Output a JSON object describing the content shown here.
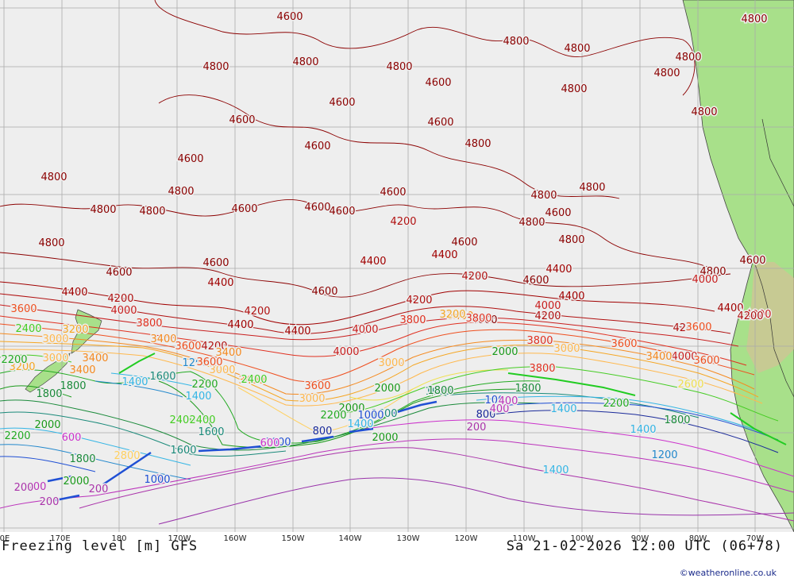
{
  "title": {
    "left": "Freezing level [m] GFS",
    "right": "Sa 21-02-2026 12:00 UTC (06+78)"
  },
  "credit": "©weatheronline.co.uk",
  "colors": {
    "ocean": "#eeeeee",
    "land": "#a8e08a",
    "grid": "#aaaaaa",
    "c4800": "#8b0000",
    "c4600": "#8b0000",
    "c4400": "#a00000",
    "c4200": "#b01010",
    "c4000": "#c81e1e",
    "c3800": "#e03020",
    "c3600": "#ef4f1f",
    "c3400": "#f58a20",
    "c3200": "#f5a623",
    "c3000": "#ffb84d",
    "c2800": "#ffd060",
    "c2600": "#f0e050",
    "c2400": "#44cc22",
    "c2200": "#22aa22",
    "c2000": "#1a9a1a",
    "c1800": "#1a8a3a",
    "c1600": "#1a8a7a",
    "c1400": "#33b5e5",
    "c1200": "#2288cc",
    "c1000": "#1f4fd4",
    "c800": "#1a2a9a",
    "c600": "#cc33cc",
    "c400": "#bb33bb",
    "c200": "#aa33aa",
    "c0": "#9933aa"
  },
  "map": {
    "longitude_labels": [
      {
        "text": "0E",
        "lon": -160
      },
      {
        "text": "170E",
        "lon": -170
      },
      {
        "text": "180",
        "lon": -180
      },
      {
        "text": "170W",
        "lon": 170
      },
      {
        "text": "160W",
        "lon": 160
      },
      {
        "text": "150W",
        "lon": 150
      },
      {
        "text": "140W",
        "lon": 140
      },
      {
        "text": "130W",
        "lon": 130
      },
      {
        "text": "120W",
        "lon": 120
      },
      {
        "text": "110W",
        "lon": 110
      },
      {
        "text": "100W",
        "lon": 100
      },
      {
        "text": "90W",
        "lon": 90
      },
      {
        "text": "80W",
        "lon": 80
      },
      {
        "text": "70W",
        "lon": 70
      }
    ],
    "contour_labels": [
      {
        "v": "4600",
        "c": "c4600"
      },
      {
        "v": "4800",
        "c": "c4800"
      },
      {
        "v": "4800",
        "c": "c4800"
      },
      {
        "v": "4800",
        "c": "c4800"
      },
      {
        "v": "4800",
        "c": "c4800"
      },
      {
        "v": "4800",
        "c": "c4800"
      },
      {
        "v": "4800",
        "c": "c4800"
      },
      {
        "v": "4800",
        "c": "c4800"
      },
      {
        "v": "4800",
        "c": "c4800"
      },
      {
        "v": "4800",
        "c": "c4800"
      },
      {
        "v": "4800",
        "c": "c4800"
      },
      {
        "v": "4800",
        "c": "c4800"
      },
      {
        "v": "4800",
        "c": "c4800"
      },
      {
        "v": "4600",
        "c": "c4600"
      },
      {
        "v": "4600",
        "c": "c4600"
      },
      {
        "v": "4600",
        "c": "c4600"
      },
      {
        "v": "4800",
        "c": "c4800"
      },
      {
        "v": "4600",
        "c": "c4600"
      },
      {
        "v": "4600",
        "c": "c4600"
      },
      {
        "v": "4800",
        "c": "c4800"
      },
      {
        "v": "4800",
        "c": "c4800"
      },
      {
        "v": "4800",
        "c": "c4800"
      },
      {
        "v": "4800",
        "c": "c4800"
      },
      {
        "v": "4600",
        "c": "c4600"
      },
      {
        "v": "4600",
        "c": "c4600"
      },
      {
        "v": "4600",
        "c": "c4600"
      },
      {
        "v": "4600",
        "c": "c4600"
      },
      {
        "v": "4800",
        "c": "c4800"
      },
      {
        "v": "4800",
        "c": "c4800"
      },
      {
        "v": "4600",
        "c": "c4600"
      },
      {
        "v": "4800",
        "c": "c4800"
      },
      {
        "v": "4600",
        "c": "c4600"
      },
      {
        "v": "4400",
        "c": "c4400"
      },
      {
        "v": "4200",
        "c": "c4200"
      },
      {
        "v": "4600",
        "c": "c4600"
      },
      {
        "v": "4400",
        "c": "c4400"
      },
      {
        "v": "4600",
        "c": "c4600"
      },
      {
        "v": "4400",
        "c": "c4400"
      },
      {
        "v": "4600",
        "c": "c4600"
      },
      {
        "v": "4600",
        "c": "c4600"
      },
      {
        "v": "4400",
        "c": "c4400"
      },
      {
        "v": "4200",
        "c": "c4200"
      },
      {
        "v": "4200",
        "c": "c4200"
      },
      {
        "v": "4600",
        "c": "c4600"
      },
      {
        "v": "4400",
        "c": "c4400"
      },
      {
        "v": "4200",
        "c": "c4200"
      },
      {
        "v": "4000",
        "c": "c4000"
      },
      {
        "v": "4400",
        "c": "c4400"
      },
      {
        "v": "4200",
        "c": "c4200"
      },
      {
        "v": "4000",
        "c": "c4000"
      },
      {
        "v": "3800",
        "c": "c3800"
      },
      {
        "v": "3600",
        "c": "c3600"
      },
      {
        "v": "4400",
        "c": "c4400"
      },
      {
        "v": "4800",
        "c": "c4800"
      },
      {
        "v": "4600",
        "c": "c4600"
      },
      {
        "v": "4000",
        "c": "c4000"
      },
      {
        "v": "4400",
        "c": "c4400"
      },
      {
        "v": "4200",
        "c": "c4200"
      },
      {
        "v": "4000",
        "c": "c4000"
      },
      {
        "v": "4600",
        "c": "c4600"
      },
      {
        "v": "4200",
        "c": "c4200"
      },
      {
        "v": "4000",
        "c": "c4000"
      },
      {
        "v": "4400",
        "c": "c4400"
      },
      {
        "v": "4000",
        "c": "c4000"
      },
      {
        "v": "3800",
        "c": "c3800"
      },
      {
        "v": "4200",
        "c": "c4200"
      },
      {
        "v": "3800",
        "c": "c3800"
      },
      {
        "v": "4000",
        "c": "c4000"
      },
      {
        "v": "3600",
        "c": "c3600"
      },
      {
        "v": "3600",
        "c": "c3600"
      },
      {
        "v": "3400",
        "c": "c3400"
      },
      {
        "v": "3200",
        "c": "c3200"
      },
      {
        "v": "3400",
        "c": "c3400"
      },
      {
        "v": "3000",
        "c": "c3000"
      },
      {
        "v": "3400",
        "c": "c3400"
      },
      {
        "v": "3600",
        "c": "c3600"
      },
      {
        "v": "4200",
        "c": "c4200"
      },
      {
        "v": "3600",
        "c": "c3600"
      },
      {
        "v": "3800",
        "c": "c3800"
      },
      {
        "v": "3400",
        "c": "c3400"
      },
      {
        "v": "3600",
        "c": "c3600"
      },
      {
        "v": "3400",
        "c": "c3400"
      },
      {
        "v": "3200",
        "c": "c3200"
      },
      {
        "v": "3000",
        "c": "c3000"
      },
      {
        "v": "2400",
        "c": "c2400"
      },
      {
        "v": "2000",
        "c": "c2000"
      },
      {
        "v": "3800",
        "c": "c3800"
      },
      {
        "v": "3200",
        "c": "c3200"
      },
      {
        "v": "3400",
        "c": "c3400"
      },
      {
        "v": "3000",
        "c": "c3000"
      },
      {
        "v": "2400",
        "c": "c2400"
      },
      {
        "v": "3000",
        "c": "c3000"
      },
      {
        "v": "2200",
        "c": "c2200"
      },
      {
        "v": "3000",
        "c": "c3000"
      },
      {
        "v": "1800",
        "c": "c1800"
      },
      {
        "v": "1200",
        "c": "c1200"
      },
      {
        "v": "1400",
        "c": "c1400"
      },
      {
        "v": "1600",
        "c": "c1600"
      },
      {
        "v": "2200",
        "c": "c2200"
      },
      {
        "v": "3000",
        "c": "c3000"
      },
      {
        "v": "3600",
        "c": "c3600"
      },
      {
        "v": "3400",
        "c": "c3400"
      },
      {
        "v": "2600",
        "c": "c2600"
      },
      {
        "v": "2000",
        "c": "c2000"
      },
      {
        "v": "1600",
        "c": "c1600"
      },
      {
        "v": "1800",
        "c": "c1800"
      },
      {
        "v": "1400",
        "c": "c1400"
      },
      {
        "v": "2400",
        "c": "c2400"
      },
      {
        "v": "2000",
        "c": "c2000"
      },
      {
        "v": "1800",
        "c": "c1800"
      },
      {
        "v": "1000",
        "c": "c1000"
      },
      {
        "v": "2200",
        "c": "c2200"
      },
      {
        "v": "1600",
        "c": "c1600"
      },
      {
        "v": "1400",
        "c": "c1400"
      },
      {
        "v": "2400",
        "c": "c2400"
      },
      {
        "v": "2200",
        "c": "c2200"
      },
      {
        "v": "1000",
        "c": "c1000"
      },
      {
        "v": "1400",
        "c": "c1400"
      },
      {
        "v": "2200",
        "c": "c2200"
      },
      {
        "v": "2000",
        "c": "c2000"
      },
      {
        "v": "1800",
        "c": "c1800"
      },
      {
        "v": "1600",
        "c": "c1600"
      },
      {
        "v": "1000",
        "c": "c1000"
      },
      {
        "v": "1600",
        "c": "c1600"
      },
      {
        "v": "1800",
        "c": "c1800"
      },
      {
        "v": "2800",
        "c": "c2800"
      },
      {
        "v": "2000",
        "c": "c2000"
      },
      {
        "v": "600",
        "c": "c600"
      },
      {
        "v": "800",
        "c": "c800"
      },
      {
        "v": "600",
        "c": "c600"
      },
      {
        "v": "800",
        "c": "c800"
      },
      {
        "v": "400",
        "c": "c400"
      },
      {
        "v": "200",
        "c": "c200"
      },
      {
        "v": "1800",
        "c": "c1800"
      },
      {
        "v": "1400",
        "c": "c1400"
      },
      {
        "v": "1200",
        "c": "c1200"
      },
      {
        "v": "2000",
        "c": "c2000"
      },
      {
        "v": "400",
        "c": "c400"
      },
      {
        "v": "200",
        "c": "c200"
      },
      {
        "v": "400",
        "c": "c400"
      },
      {
        "v": "200",
        "c": "c200"
      },
      {
        "v": "200",
        "c": "c200"
      },
      {
        "v": "0",
        "c": "c0"
      },
      {
        "v": "1400",
        "c": "c1400"
      },
      {
        "v": "1000",
        "c": "c1000"
      }
    ]
  }
}
